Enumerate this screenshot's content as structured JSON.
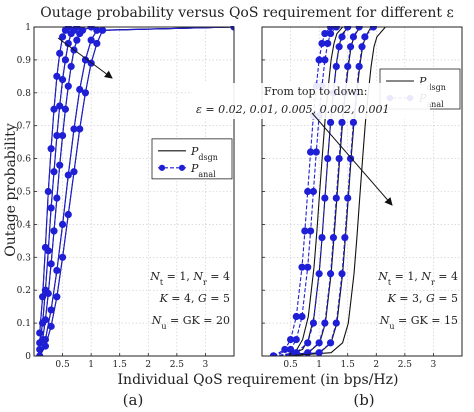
{
  "figure_title": "Outage probability versus QoS requirement for different ε",
  "ylabel": "Outage probability",
  "xlabel": "Individual QoS requirement (in bps/Hz)",
  "chart_data": [
    {
      "type": "line",
      "panel_label": "(a)",
      "xlim": [
        0,
        3.5
      ],
      "ylim": [
        0,
        1
      ],
      "xticks": [
        "0.5",
        "1",
        "1.5",
        "2",
        "2.5",
        "3"
      ],
      "yticks": [
        "0",
        "0.1",
        "0.2",
        "0.3",
        "0.4",
        "0.5",
        "0.6",
        "0.7",
        "0.8",
        "0.9",
        "1"
      ],
      "grid": true,
      "legend": {
        "position": "middle-right",
        "entries": [
          "P_dsgn",
          "P_anal"
        ]
      },
      "annotations": {
        "note": "From top to down:",
        "epsilon_list": "ε = 0.02, 0.01, 0.005, 0.002, 0.001",
        "params": [
          "N_t = 1, N_r = 4",
          "K = 4, G = 5",
          "N_u = GK = 20"
        ]
      },
      "series": [
        {
          "x": [
            0.1,
            0.15,
            0.2,
            0.25,
            0.3,
            0.35,
            0.4,
            0.45,
            0.5,
            0.55,
            0.6,
            1.0,
            3.5
          ],
          "values": [
            0.07,
            0.18,
            0.33,
            0.5,
            0.63,
            0.75,
            0.85,
            0.92,
            0.97,
            0.99,
            1.0,
            1.0,
            1.0
          ]
        },
        {
          "x": [
            0.1,
            0.15,
            0.2,
            0.25,
            0.3,
            0.35,
            0.4,
            0.45,
            0.5,
            0.55,
            0.6,
            0.65,
            0.7,
            0.75,
            1.0,
            3.5
          ],
          "values": [
            0.04,
            0.1,
            0.2,
            0.32,
            0.45,
            0.56,
            0.67,
            0.76,
            0.84,
            0.9,
            0.95,
            0.98,
            0.99,
            1.0,
            1.0,
            1.0
          ]
        },
        {
          "x": [
            0.1,
            0.15,
            0.2,
            0.25,
            0.3,
            0.35,
            0.4,
            0.45,
            0.5,
            0.55,
            0.6,
            0.65,
            0.7,
            0.75,
            0.8,
            0.85,
            1.0,
            3.5
          ],
          "values": [
            0.02,
            0.05,
            0.11,
            0.19,
            0.28,
            0.38,
            0.48,
            0.58,
            0.67,
            0.75,
            0.82,
            0.88,
            0.93,
            0.96,
            0.98,
            0.99,
            1.0,
            1.0
          ]
        },
        {
          "x": [
            0.1,
            0.2,
            0.3,
            0.4,
            0.5,
            0.6,
            0.7,
            0.8,
            0.9,
            1.0,
            1.1,
            3.5
          ],
          "values": [
            0.0,
            0.05,
            0.14,
            0.26,
            0.4,
            0.55,
            0.69,
            0.81,
            0.9,
            0.96,
            0.99,
            1.0
          ]
        },
        {
          "x": [
            0.1,
            0.2,
            0.3,
            0.4,
            0.5,
            0.6,
            0.7,
            0.8,
            0.9,
            1.0,
            1.1,
            1.2,
            3.5
          ],
          "values": [
            0.0,
            0.03,
            0.09,
            0.18,
            0.3,
            0.43,
            0.56,
            0.69,
            0.8,
            0.89,
            0.95,
            0.99,
            1.0
          ]
        }
      ]
    },
    {
      "type": "line",
      "panel_label": "(b)",
      "xlim": [
        0,
        3.5
      ],
      "ylim": [
        0,
        1
      ],
      "xticks": [
        "0.5",
        "1",
        "1.5",
        "2",
        "2.5",
        "3"
      ],
      "yticks": [
        "0",
        "0.1",
        "0.2",
        "0.3",
        "0.4",
        "0.5",
        "0.6",
        "0.7",
        "0.8",
        "0.9",
        "1"
      ],
      "grid": true,
      "legend": {
        "position": "top-right",
        "entries": [
          "P_dsgn",
          "P_anal"
        ]
      },
      "annotations": {
        "params": [
          "N_t = 1, N_r = 4",
          "K = 3, G = 5",
          "N_u = GK = 15"
        ]
      },
      "series": [
        {
          "x": [
            0.2,
            0.4,
            0.5,
            0.6,
            0.7,
            0.75,
            0.8,
            0.85,
            0.9,
            0.95,
            1.0,
            1.05,
            1.1,
            1.2,
            3.5
          ],
          "values": [
            0.0,
            0.02,
            0.05,
            0.12,
            0.27,
            0.38,
            0.5,
            0.62,
            0.73,
            0.82,
            0.9,
            0.95,
            0.98,
            1.0,
            1.0
          ]
        },
        {
          "x": [
            0.2,
            0.5,
            0.6,
            0.7,
            0.8,
            0.85,
            0.9,
            0.95,
            1.0,
            1.05,
            1.1,
            1.15,
            1.2,
            1.3,
            3.5
          ],
          "values": [
            0.0,
            0.02,
            0.05,
            0.12,
            0.27,
            0.38,
            0.5,
            0.62,
            0.73,
            0.82,
            0.9,
            0.95,
            0.98,
            1.0,
            1.0
          ]
        },
        {
          "x": [
            0.2,
            0.6,
            0.8,
            0.9,
            1.0,
            1.05,
            1.1,
            1.15,
            1.2,
            1.25,
            1.3,
            1.35,
            1.4,
            1.5,
            3.5
          ],
          "values": [
            0.0,
            0.01,
            0.04,
            0.1,
            0.25,
            0.36,
            0.48,
            0.6,
            0.71,
            0.8,
            0.88,
            0.94,
            0.97,
            1.0,
            1.0
          ]
        },
        {
          "x": [
            0.2,
            0.8,
            1.0,
            1.1,
            1.2,
            1.25,
            1.3,
            1.35,
            1.4,
            1.45,
            1.5,
            1.55,
            1.6,
            1.7,
            3.5
          ],
          "values": [
            0.0,
            0.01,
            0.04,
            0.1,
            0.25,
            0.36,
            0.48,
            0.6,
            0.71,
            0.8,
            0.88,
            0.94,
            0.97,
            1.0,
            1.0
          ]
        },
        {
          "x": [
            0.2,
            1.0,
            1.2,
            1.3,
            1.4,
            1.45,
            1.5,
            1.55,
            1.6,
            1.65,
            1.7,
            1.75,
            1.8,
            1.95,
            3.5
          ],
          "values": [
            0.0,
            0.01,
            0.04,
            0.1,
            0.25,
            0.36,
            0.48,
            0.6,
            0.71,
            0.8,
            0.88,
            0.94,
            0.97,
            1.0,
            1.0
          ]
        }
      ]
    }
  ],
  "colors": {
    "dsgn": "#111111",
    "anal": "#1f1fd6",
    "grid": "#c8c8c8"
  }
}
